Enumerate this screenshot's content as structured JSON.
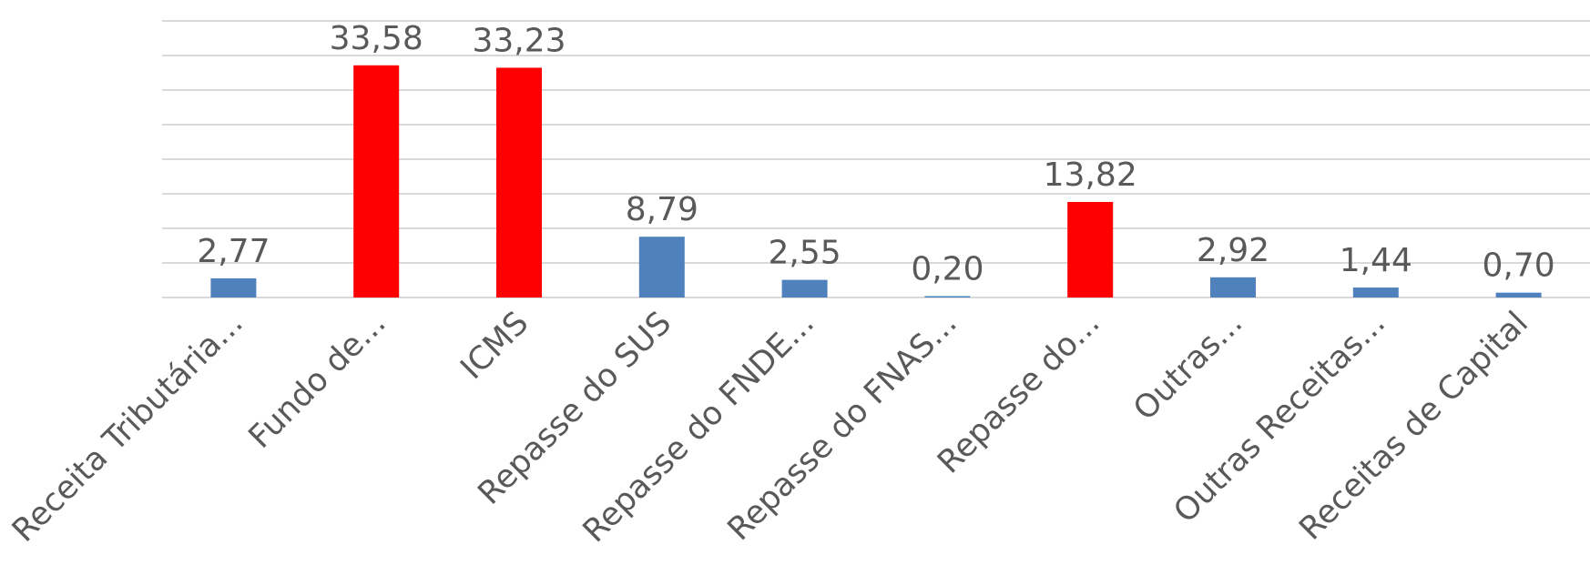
{
  "chart_data": {
    "type": "bar",
    "categories": [
      "Receita Tributária...",
      "Fundo de...",
      "ICMS",
      "Repasse do SUS",
      "Repasse do FNDE...",
      "Repasse do FNAS...",
      "Repasse do...",
      "Outras...",
      "Outras Receitas...",
      "Receitas de Capital"
    ],
    "values": [
      2.77,
      33.58,
      33.23,
      8.79,
      2.55,
      0.2,
      13.82,
      2.92,
      1.44,
      0.7
    ],
    "value_labels": [
      "2,77",
      "33,58",
      "33,23",
      "8,79",
      "2,55",
      "0,20",
      "13,82",
      "2,92",
      "1,44",
      "0,70"
    ],
    "colors": [
      "#4f81bd",
      "#ff0000",
      "#ff0000",
      "#4f81bd",
      "#4f81bd",
      "#4f81bd",
      "#ff0000",
      "#4f81bd",
      "#4f81bd",
      "#4f81bd"
    ],
    "ylim": [
      0,
      40
    ],
    "yticks": [
      0,
      5,
      10,
      15,
      20,
      25,
      30,
      35,
      40
    ],
    "grid": true
  }
}
